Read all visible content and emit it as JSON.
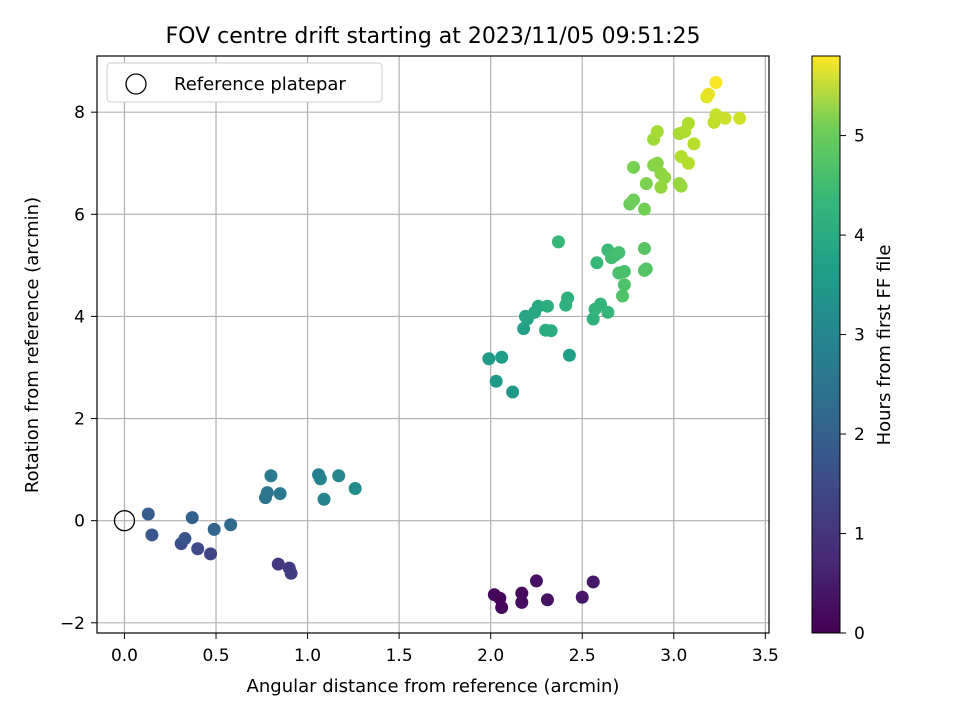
{
  "chart_data": {
    "type": "scatter",
    "title": "FOV centre drift starting at 2023/11/05 09:51:25",
    "xlabel": "Angular distance from reference (arcmin)",
    "ylabel": "Rotation from reference (arcmin)",
    "xlim": [
      -0.15,
      3.52
    ],
    "ylim": [
      -2.2,
      9.1
    ],
    "xticks": [
      0.0,
      0.5,
      1.0,
      1.5,
      2.0,
      2.5,
      3.0,
      3.5
    ],
    "xtick_labels": [
      "0.0",
      "0.5",
      "1.0",
      "1.5",
      "2.0",
      "2.5",
      "3.0",
      "3.5"
    ],
    "yticks": [
      -2,
      0,
      2,
      4,
      6,
      8
    ],
    "ytick_labels": [
      "−2",
      "0",
      "2",
      "4",
      "6",
      "8"
    ],
    "grid": true,
    "legend": {
      "position": "upper-left",
      "entries": [
        "Reference platepar"
      ]
    },
    "reference_point": {
      "x": 0.0,
      "y": 0.0,
      "label": "Reference platepar"
    },
    "colorbar": {
      "label": "Hours from first FF file",
      "colormap": "viridis",
      "range": [
        0,
        5.8
      ],
      "ticks": [
        0,
        1,
        2,
        3,
        4,
        5
      ],
      "tick_labels": [
        "0",
        "1",
        "2",
        "3",
        "4",
        "5"
      ]
    },
    "points": [
      {
        "x": 2.02,
        "y": -1.45,
        "c": 0.05
      },
      {
        "x": 2.05,
        "y": -1.52,
        "c": 0.1
      },
      {
        "x": 2.06,
        "y": -1.7,
        "c": 0.12
      },
      {
        "x": 2.17,
        "y": -1.42,
        "c": 0.15
      },
      {
        "x": 2.17,
        "y": -1.6,
        "c": 0.2
      },
      {
        "x": 2.25,
        "y": -1.18,
        "c": 0.25
      },
      {
        "x": 2.31,
        "y": -1.55,
        "c": 0.3
      },
      {
        "x": 2.5,
        "y": -1.5,
        "c": 0.35
      },
      {
        "x": 2.56,
        "y": -1.2,
        "c": 0.4
      },
      {
        "x": 0.84,
        "y": -0.85,
        "c": 0.95
      },
      {
        "x": 0.9,
        "y": -0.93,
        "c": 1.0
      },
      {
        "x": 0.91,
        "y": -1.03,
        "c": 1.05
      },
      {
        "x": 0.47,
        "y": -0.65,
        "c": 1.2
      },
      {
        "x": 0.4,
        "y": -0.55,
        "c": 1.3
      },
      {
        "x": 0.31,
        "y": -0.45,
        "c": 1.4
      },
      {
        "x": 0.33,
        "y": -0.35,
        "c": 1.5
      },
      {
        "x": 0.15,
        "y": -0.28,
        "c": 1.6
      },
      {
        "x": 0.13,
        "y": 0.13,
        "c": 1.7
      },
      {
        "x": 0.37,
        "y": 0.06,
        "c": 1.8
      },
      {
        "x": 0.49,
        "y": -0.17,
        "c": 1.9
      },
      {
        "x": 0.58,
        "y": -0.08,
        "c": 2.0
      },
      {
        "x": 0.77,
        "y": 0.45,
        "c": 2.2
      },
      {
        "x": 0.78,
        "y": 0.55,
        "c": 2.3
      },
      {
        "x": 0.85,
        "y": 0.53,
        "c": 2.35
      },
      {
        "x": 0.8,
        "y": 0.88,
        "c": 2.4
      },
      {
        "x": 1.06,
        "y": 0.9,
        "c": 2.5
      },
      {
        "x": 1.07,
        "y": 0.82,
        "c": 2.55
      },
      {
        "x": 1.09,
        "y": 0.42,
        "c": 2.6
      },
      {
        "x": 1.17,
        "y": 0.88,
        "c": 2.7
      },
      {
        "x": 1.26,
        "y": 0.63,
        "c": 2.8
      },
      {
        "x": 2.12,
        "y": 2.52,
        "c": 3.05
      },
      {
        "x": 2.03,
        "y": 2.73,
        "c": 3.1
      },
      {
        "x": 1.99,
        "y": 3.17,
        "c": 3.15
      },
      {
        "x": 2.06,
        "y": 3.2,
        "c": 3.2
      },
      {
        "x": 2.43,
        "y": 3.24,
        "c": 3.25
      },
      {
        "x": 2.18,
        "y": 3.76,
        "c": 3.3
      },
      {
        "x": 2.2,
        "y": 3.95,
        "c": 3.35
      },
      {
        "x": 2.19,
        "y": 4.0,
        "c": 3.4
      },
      {
        "x": 2.24,
        "y": 4.08,
        "c": 3.45
      },
      {
        "x": 2.26,
        "y": 4.2,
        "c": 3.5
      },
      {
        "x": 2.3,
        "y": 3.73,
        "c": 3.55
      },
      {
        "x": 2.33,
        "y": 3.72,
        "c": 3.6
      },
      {
        "x": 2.31,
        "y": 4.2,
        "c": 3.62
      },
      {
        "x": 2.41,
        "y": 4.22,
        "c": 3.65
      },
      {
        "x": 2.42,
        "y": 4.36,
        "c": 3.7
      },
      {
        "x": 2.56,
        "y": 3.95,
        "c": 3.75
      },
      {
        "x": 2.57,
        "y": 4.14,
        "c": 3.78
      },
      {
        "x": 2.6,
        "y": 4.24,
        "c": 3.8
      },
      {
        "x": 2.64,
        "y": 4.08,
        "c": 3.85
      },
      {
        "x": 2.37,
        "y": 5.46,
        "c": 3.88
      },
      {
        "x": 2.58,
        "y": 5.05,
        "c": 3.9
      },
      {
        "x": 2.64,
        "y": 5.3,
        "c": 3.95
      },
      {
        "x": 2.66,
        "y": 5.15,
        "c": 4.0
      },
      {
        "x": 2.68,
        "y": 5.2,
        "c": 4.02
      },
      {
        "x": 2.7,
        "y": 5.25,
        "c": 4.05
      },
      {
        "x": 2.7,
        "y": 4.85,
        "c": 4.1
      },
      {
        "x": 2.73,
        "y": 4.88,
        "c": 4.12
      },
      {
        "x": 2.73,
        "y": 4.62,
        "c": 4.15
      },
      {
        "x": 2.72,
        "y": 4.4,
        "c": 4.18
      },
      {
        "x": 2.84,
        "y": 4.9,
        "c": 4.2
      },
      {
        "x": 2.85,
        "y": 4.93,
        "c": 4.22
      },
      {
        "x": 2.84,
        "y": 5.33,
        "c": 4.25
      },
      {
        "x": 2.76,
        "y": 6.2,
        "c": 4.45
      },
      {
        "x": 2.78,
        "y": 6.28,
        "c": 4.5
      },
      {
        "x": 2.84,
        "y": 6.1,
        "c": 4.55
      },
      {
        "x": 2.78,
        "y": 6.92,
        "c": 4.6
      },
      {
        "x": 2.85,
        "y": 6.6,
        "c": 4.65
      },
      {
        "x": 2.89,
        "y": 6.96,
        "c": 4.7
      },
      {
        "x": 2.91,
        "y": 7.0,
        "c": 4.75
      },
      {
        "x": 2.93,
        "y": 6.8,
        "c": 4.8
      },
      {
        "x": 2.95,
        "y": 6.72,
        "c": 4.82
      },
      {
        "x": 2.93,
        "y": 6.53,
        "c": 4.85
      },
      {
        "x": 3.03,
        "y": 6.6,
        "c": 4.88
      },
      {
        "x": 3.04,
        "y": 6.55,
        "c": 4.9
      },
      {
        "x": 2.89,
        "y": 7.47,
        "c": 4.95
      },
      {
        "x": 2.91,
        "y": 7.62,
        "c": 5.0
      },
      {
        "x": 3.03,
        "y": 7.58,
        "c": 5.05
      },
      {
        "x": 3.06,
        "y": 7.62,
        "c": 5.08
      },
      {
        "x": 3.08,
        "y": 7.78,
        "c": 5.1
      },
      {
        "x": 3.04,
        "y": 7.13,
        "c": 5.12
      },
      {
        "x": 3.08,
        "y": 7.0,
        "c": 5.15
      },
      {
        "x": 3.11,
        "y": 7.38,
        "c": 5.18
      },
      {
        "x": 3.22,
        "y": 7.8,
        "c": 5.25
      },
      {
        "x": 3.23,
        "y": 7.95,
        "c": 5.3
      },
      {
        "x": 3.28,
        "y": 7.88,
        "c": 5.35
      },
      {
        "x": 3.36,
        "y": 7.88,
        "c": 5.4
      },
      {
        "x": 3.18,
        "y": 8.3,
        "c": 5.55
      },
      {
        "x": 3.19,
        "y": 8.35,
        "c": 5.6
      },
      {
        "x": 3.23,
        "y": 8.58,
        "c": 5.75
      }
    ]
  }
}
